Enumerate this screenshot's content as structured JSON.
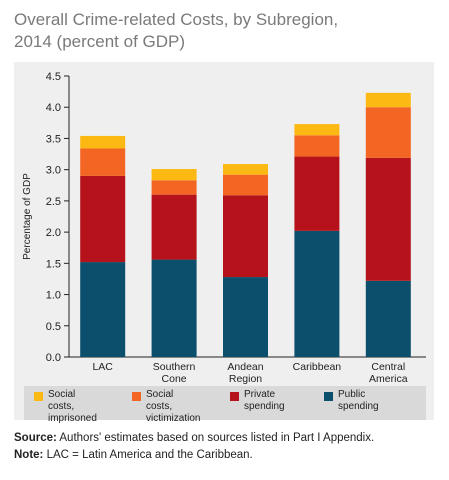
{
  "title_line1": "Overall Crime-related Costs, by Subregion,",
  "title_line2": "2014 (percent of GDP)",
  "chart_data": {
    "type": "bar",
    "stacked": true,
    "title": "Overall Crime-related Costs, by Subregion, 2014 (percent of GDP)",
    "xlabel": "",
    "ylabel": "Percentage of GDP",
    "ylim": [
      0,
      4.5
    ],
    "yticks": [
      "0.0",
      "0.5",
      "1.0",
      "1.5",
      "2.0",
      "2.5",
      "3.0",
      "3.5",
      "4.0",
      "4.5"
    ],
    "categories": [
      "LAC",
      "Southern\nCone",
      "Andean\nRegion",
      "Caribbean",
      "Central\nAmerica"
    ],
    "series": [
      {
        "name": "Public\nspending",
        "color": "#0b4f6c",
        "values": [
          1.52,
          1.56,
          1.28,
          2.02,
          1.22
        ]
      },
      {
        "name": "Private\nspending",
        "color": "#b5121b",
        "values": [
          1.38,
          1.04,
          1.31,
          1.19,
          1.97
        ]
      },
      {
        "name": "Social costs,\nvictimization",
        "color": "#f26522",
        "values": [
          0.44,
          0.23,
          0.33,
          0.34,
          0.81
        ]
      },
      {
        "name": "Social costs,\nimprisoned",
        "color": "#fdb913",
        "values": [
          0.2,
          0.18,
          0.17,
          0.18,
          0.23
        ]
      }
    ],
    "grid": false,
    "legend_position": "bottom"
  },
  "legend_order": [
    3,
    2,
    1,
    0
  ],
  "notes": {
    "source_label": "Source:",
    "source_text": " Authors' estimates based on sources listed in Part I Appendix.",
    "note_label": "Note:",
    "note_text": " LAC = Latin America and the Caribbean."
  }
}
